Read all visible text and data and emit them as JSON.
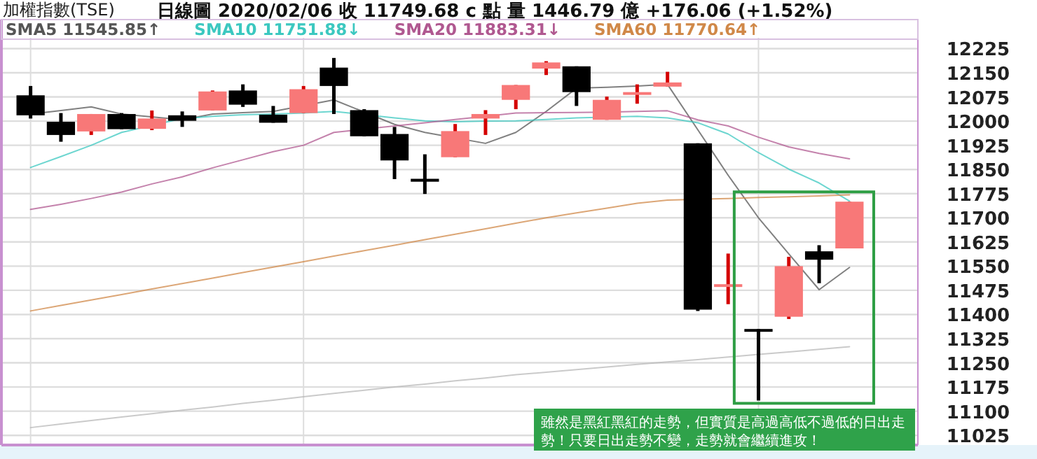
{
  "chart_data": {
    "type": "candlestick",
    "title": "加權指數(TSE)",
    "subtitle": "日線圖  2020/02/06  收 11749.68 c 點  量 1446.79 億  +176.06 (+1.52%)",
    "annotations": [
      "雖然是黑紅黑紅的走勢，但實質是高過高低不過低的日出走勢！只要日出走勢不變，走勢就會繼續進攻！"
    ],
    "categories": [
      null,
      null,
      null,
      null,
      null,
      null,
      null,
      null,
      null,
      null,
      null,
      null,
      null,
      null,
      null,
      null,
      null,
      null,
      null,
      null,
      null,
      null,
      null,
      null,
      null,
      null,
      null,
      null
    ],
    "ohlc": [
      [
        12080,
        12109,
        12008,
        12018
      ],
      [
        11998,
        12025,
        11936,
        11957
      ],
      [
        11968,
        12022,
        11957,
        12022
      ],
      [
        12022,
        12025,
        11975,
        11975
      ],
      [
        11976,
        12033,
        11972,
        12008
      ],
      [
        12018,
        12030,
        11982,
        12001
      ],
      [
        12033,
        12095,
        12033,
        12092
      ],
      [
        12095,
        12114,
        12044,
        12051
      ],
      [
        12020,
        12047,
        11995,
        11995
      ],
      [
        12025,
        12109,
        12025,
        12099
      ],
      [
        12166,
        12196,
        12022,
        12109
      ],
      [
        12034,
        12037,
        11953,
        11953
      ],
      [
        11960,
        11982,
        11820,
        11878
      ],
      [
        11821,
        11897,
        11774,
        11812
      ],
      [
        11888,
        11991,
        11888,
        11969
      ],
      [
        12008,
        12034,
        11957,
        12022
      ],
      [
        12066,
        12112,
        12037,
        12112
      ],
      [
        12163,
        12186,
        12143,
        12182
      ],
      [
        12170,
        12170,
        12047,
        12090
      ],
      [
        12004,
        12076,
        12004,
        12066
      ],
      [
        12083,
        12114,
        12054,
        12090
      ],
      [
        12107,
        12153,
        12107,
        12120
      ],
      [
        11931,
        11931,
        11411,
        11415
      ],
      [
        11490,
        11589,
        11432,
        11494
      ],
      [
        11355,
        11355,
        11133,
        11350
      ],
      [
        11393,
        11579,
        11386,
        11550
      ],
      [
        11596,
        11615,
        11497,
        11570
      ],
      [
        11605,
        11750,
        11605,
        11750
      ]
    ],
    "colors": [
      "#000000",
      "#000000",
      "#f87878",
      "#000000",
      "#f87878",
      "#000000",
      "#f87878",
      "#000000",
      "#000000",
      "#f87878",
      "#000000",
      "#000000",
      "#000000",
      "#000000",
      "#f87878",
      "#f87878",
      "#f87878",
      "#f87878",
      "#000000",
      "#f87878",
      "#f87878",
      "#f87878",
      "#000000",
      "#f87878",
      "#000000",
      "#f87878",
      "#000000",
      "#f87878"
    ],
    "series": [
      {
        "name": "SMA5 11545.85↑",
        "type": "line",
        "color": "#555555",
        "values": [
          12022,
          12033,
          12044,
          12022,
          null,
          12004,
          12022,
          12026,
          12030,
          null,
          12066,
          null,
          11990,
          11965,
          null,
          11931,
          11965,
          12030,
          12102,
          12105,
          12109,
          12114,
          11973,
          11832,
          11700,
          11588,
          11477,
          11546
        ]
      },
      {
        "name": "SMA10 11751.88↓",
        "type": "line",
        "color": "#3cc8c0",
        "values": [
          11856,
          11890,
          11925,
          11965,
          null,
          12008,
          12015,
          12020,
          12022,
          12025,
          12030,
          null,
          12010,
          12001,
          11998,
          12000,
          12001,
          12005,
          12010,
          null,
          12015,
          12010,
          11995,
          11960,
          11902,
          11851,
          11808,
          11752
        ]
      },
      {
        "name": "SMA20 11883.31↓",
        "type": "line",
        "color": "#b05890",
        "values": [
          11726,
          11742,
          11760,
          11780,
          11805,
          11827,
          11855,
          11880,
          11905,
          11925,
          11965,
          null,
          11985,
          11995,
          12005,
          12015,
          12025,
          12026,
          12027,
          12028,
          12030,
          12032,
          12004,
          11985,
          11950,
          11920,
          11900,
          11883
        ]
      },
      {
        "name": "SMA60 11770.64↑",
        "type": "line",
        "color": "#d08848",
        "values": [
          11411,
          11428,
          11445,
          11462,
          11479,
          11496,
          11513,
          11530,
          11547,
          11564,
          11581,
          11598,
          11615,
          11632,
          11649,
          11666,
          11683,
          11700,
          11715,
          11730,
          11745,
          11755,
          null,
          11760,
          11763,
          11765,
          11768,
          11771
        ]
      },
      {
        "type": "line",
        "color": "#b8b8b8",
        "values": [
          11049,
          11060,
          11071,
          11082,
          11092,
          11103,
          11113,
          11124,
          11134,
          11145,
          11155,
          11165,
          11175,
          11184,
          11194,
          11203,
          11213,
          11221,
          11229,
          11237,
          11245,
          11253,
          11260,
          11268,
          11276,
          11284,
          11292,
          11300
        ]
      }
    ],
    "ylim": [
      10995,
      12315
    ],
    "yticks": [
      11025,
      11100,
      11175,
      11250,
      11325,
      11400,
      11475,
      11550,
      11625,
      11700,
      11775,
      11850,
      11925,
      12000,
      12075,
      12150,
      12225
    ],
    "grid": true,
    "legend": "top left"
  }
}
